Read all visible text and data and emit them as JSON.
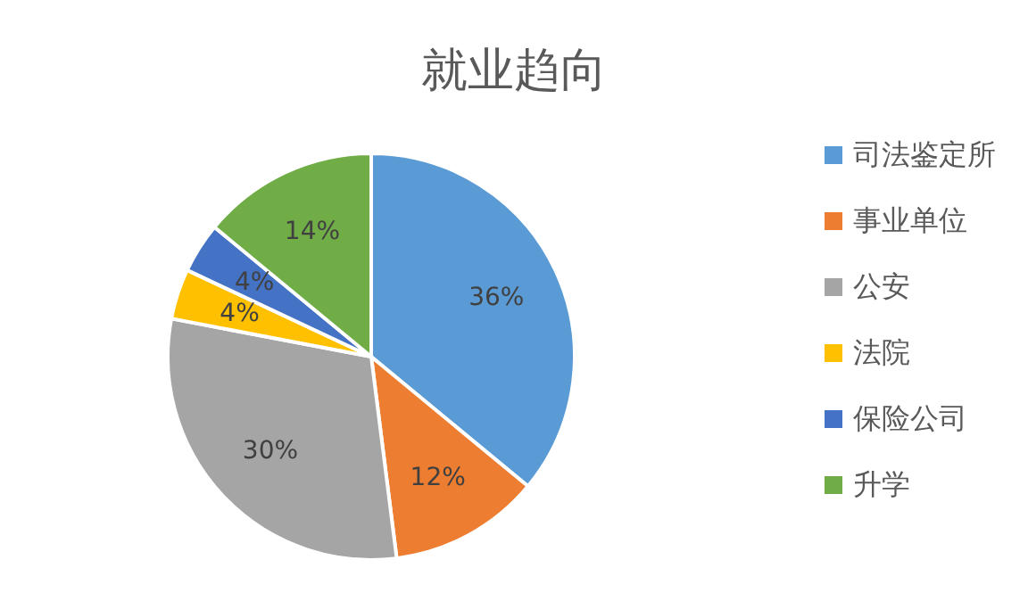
{
  "chart_data": {
    "type": "pie",
    "title": "就业趋向",
    "categories": [
      "司法鉴定所",
      "事业单位",
      "公安",
      "法院",
      "保险公司",
      "升学"
    ],
    "values": [
      36,
      12,
      30,
      4,
      4,
      14
    ],
    "colors": [
      "#5b9bd5",
      "#ed7d31",
      "#a5a5a5",
      "#ffc000",
      "#4472c4",
      "#70ad47"
    ],
    "value_labels": [
      "36%",
      "12%",
      "30%",
      "4%",
      "4%",
      "14%"
    ],
    "legend": "right"
  }
}
